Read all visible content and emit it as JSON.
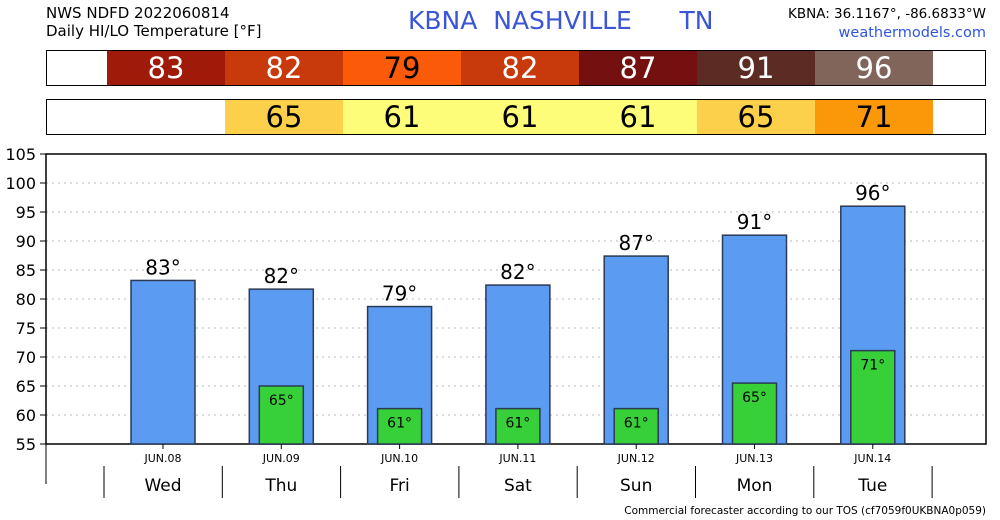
{
  "header": {
    "line1": "NWS NDFD 2022060814",
    "line2": "Daily HI/LO Temperature [°F]",
    "station": "KBNA  NASHVILLE      TN",
    "coords": "KBNA: 36.1167°, -86.6833°W",
    "website": "weathermodels.com"
  },
  "hi_strip": [
    {
      "value": "83",
      "color": "#a01a0a",
      "text_color": "#ffffff"
    },
    {
      "value": "82",
      "color": "#c83a0c",
      "text_color": "#ffffff"
    },
    {
      "value": "79",
      "color": "#fb5a08",
      "text_color": "#000000"
    },
    {
      "value": "82",
      "color": "#c83a0c",
      "text_color": "#ffffff"
    },
    {
      "value": "87",
      "color": "#741010",
      "text_color": "#ffffff"
    },
    {
      "value": "91",
      "color": "#5c2c24",
      "text_color": "#ffffff"
    },
    {
      "value": "96",
      "color": "#81655a",
      "text_color": "#ffffff"
    }
  ],
  "lo_strip": [
    {
      "value": "",
      "color": "#ffffff",
      "text_color": "#000000"
    },
    {
      "value": "65",
      "color": "#fdd04c",
      "text_color": "#000000"
    },
    {
      "value": "61",
      "color": "#fdfd7a",
      "text_color": "#000000"
    },
    {
      "value": "61",
      "color": "#fdfd7a",
      "text_color": "#000000"
    },
    {
      "value": "61",
      "color": "#fdfd7a",
      "text_color": "#000000"
    },
    {
      "value": "65",
      "color": "#fdd04c",
      "text_color": "#000000"
    },
    {
      "value": "71",
      "color": "#fb980a",
      "text_color": "#000000"
    }
  ],
  "chart_data": {
    "type": "bar",
    "categories": [
      "JUN.08",
      "JUN.09",
      "JUN.10",
      "JUN.11",
      "JUN.12",
      "JUN.13",
      "JUN.14"
    ],
    "days": [
      "Wed",
      "Thu",
      "Fri",
      "Sat",
      "Sun",
      "Mon",
      "Tue"
    ],
    "series": [
      {
        "values": [
          83.2,
          81.7,
          78.7,
          82.4,
          87.4,
          91.0,
          96.0
        ],
        "labels": [
          "83°",
          "82°",
          "79°",
          "82°",
          "87°",
          "91°",
          "96°"
        ],
        "color": "#5b9cf2"
      },
      {
        "values": [
          null,
          65.0,
          61.1,
          61.1,
          61.1,
          65.5,
          71.1
        ],
        "labels": [
          "",
          "65°",
          "61°",
          "61°",
          "61°",
          "65°",
          "71°"
        ],
        "color": "#38d038"
      }
    ],
    "ylim": [
      55,
      105
    ],
    "yticks": [
      "55",
      "60",
      "65",
      "70",
      "75",
      "80",
      "85",
      "90",
      "95",
      "100",
      "105"
    ],
    "grid": true
  },
  "footer": "Commercial forecaster according to our TOS (cf7059f0UKBNA0p059)"
}
